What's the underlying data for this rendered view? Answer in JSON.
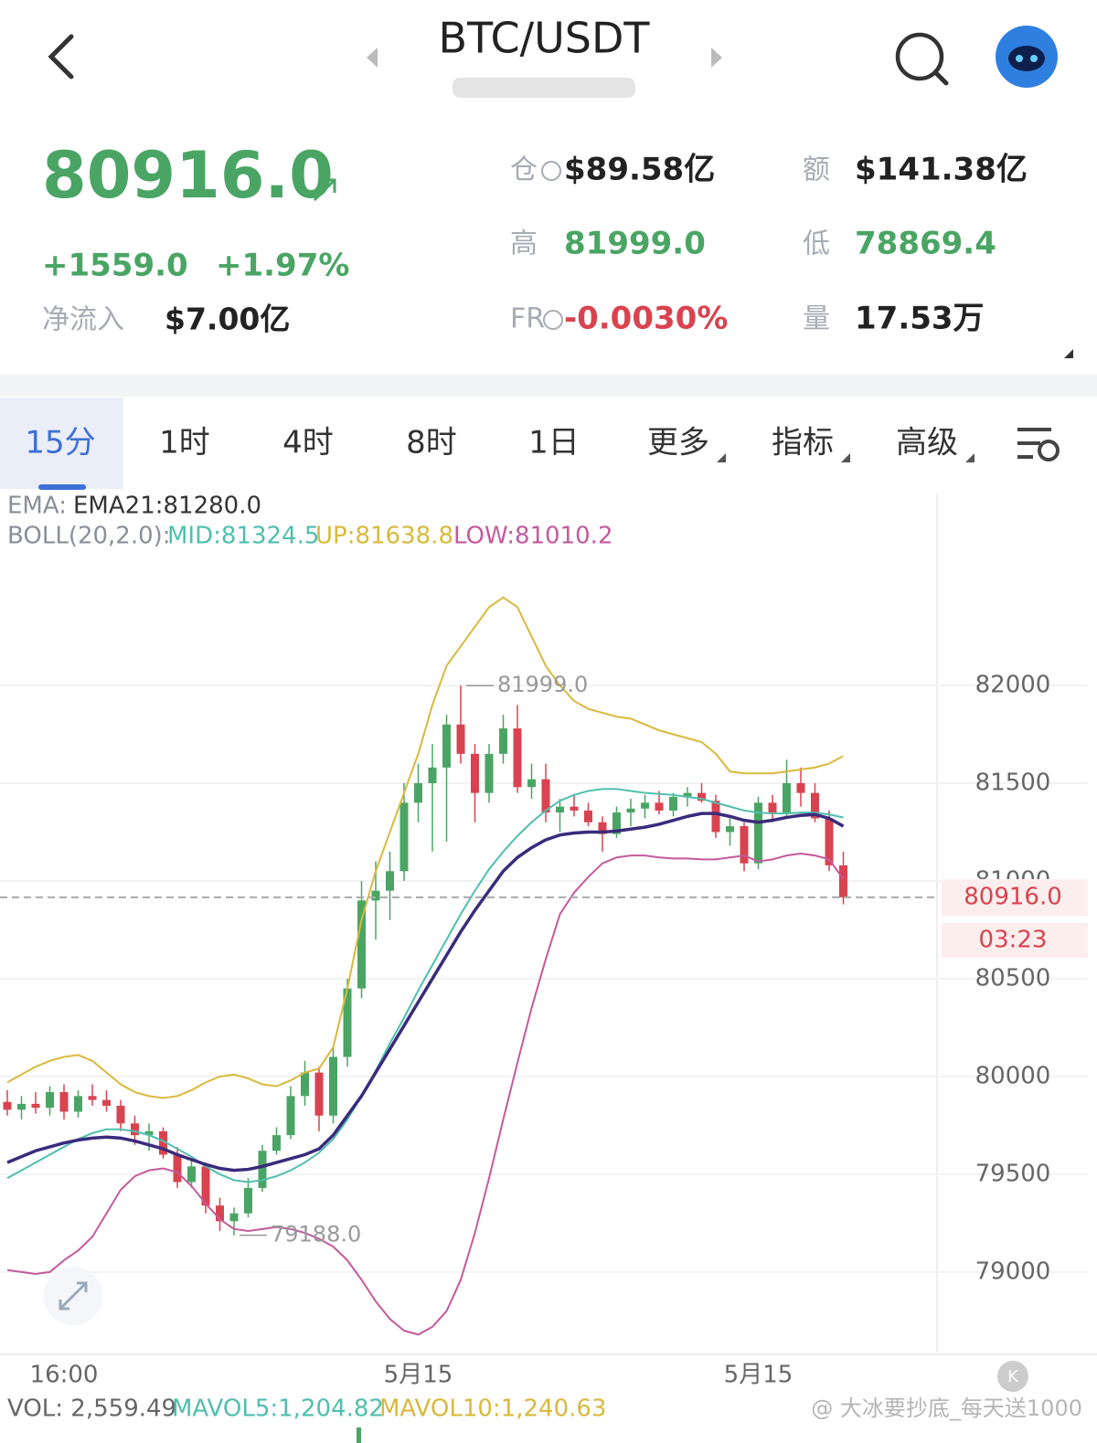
{
  "header": {
    "title": "BTC/USDT"
  },
  "ticker": {
    "price": "80916.0",
    "change": "+1559.0",
    "change_pct": "+1.97%",
    "inflow_label": "净流入",
    "inflow": "$7.00亿"
  },
  "stats": [
    {
      "label": "仓",
      "value": "$89.58亿",
      "color": "#222222"
    },
    {
      "label": "额",
      "value": "$141.38亿",
      "color": "#222222"
    },
    {
      "label": "高",
      "value": "81999.0",
      "color": "#4aa564"
    },
    {
      "label": "低",
      "value": "78869.4",
      "color": "#4aa564"
    },
    {
      "label": "FR",
      "value": "-0.0030%",
      "color": "#d9434f"
    },
    {
      "label": "量",
      "value": "17.53万",
      "color": "#222222"
    }
  ],
  "tabs": [
    "15分",
    "1时",
    "4时",
    "8时",
    "1日",
    "更多",
    "指标",
    "高级"
  ],
  "indicator_rows": [
    [
      {
        "text": "EMA:",
        "color": "#8a8f99"
      },
      {
        "text": "EMA21:81280.0",
        "color": "#333333"
      }
    ],
    [
      {
        "text": "BOLL(20,2.0):",
        "color": "#8a8f99"
      },
      {
        "text": "MID:81324.5",
        "color": "#4fbfae"
      },
      {
        "text": "UP:81638.8",
        "color": "#d9b93c"
      },
      {
        "text": "LOW:81010.2",
        "color": "#c45a9c"
      }
    ]
  ],
  "chart_data": {
    "type": "candlestick",
    "categories": [
      null,
      null,
      null,
      null,
      "16:00",
      null,
      null,
      null,
      null,
      null,
      null,
      null,
      null,
      null,
      null,
      null,
      null,
      null,
      null,
      null,
      null,
      null,
      null,
      null,
      null,
      null,
      null,
      null,
      null,
      "5月15",
      null,
      null,
      null,
      null,
      null,
      null,
      null,
      null,
      null,
      null,
      null,
      null,
      null,
      null,
      null,
      null,
      null,
      null,
      null,
      null,
      null,
      null,
      null,
      "5月15",
      null,
      null,
      null,
      null,
      null,
      null
    ],
    "open": [
      79870,
      79830,
      79860,
      79840,
      79920,
      79820,
      79900,
      79880,
      79850,
      79760,
      79700,
      79720,
      79600,
      79460,
      79540,
      79340,
      79260,
      79300,
      79430,
      79620,
      79700,
      79900,
      80020,
      79800,
      80100,
      80450,
      80900,
      80950,
      81050,
      81400,
      81500,
      81580,
      81800,
      81650,
      81450,
      81650,
      81780,
      81480,
      81520,
      81350,
      81380,
      81360,
      81300,
      81240,
      81350,
      81370,
      81400,
      81360,
      81430,
      81450,
      81410,
      81250,
      81280,
      81090,
      81400,
      81350,
      81500,
      81450,
      81320,
      81080
    ],
    "high": [
      79930,
      79900,
      79920,
      79950,
      79960,
      79930,
      79960,
      79930,
      79880,
      79800,
      79760,
      79740,
      79640,
      79580,
      79560,
      79380,
      79330,
      79480,
      79650,
      79740,
      79950,
      80080,
      80050,
      80150,
      80500,
      81000,
      81100,
      81150,
      81500,
      81600,
      81700,
      81850,
      81999,
      81700,
      81700,
      81850,
      81900,
      81600,
      81600,
      81420,
      81440,
      81400,
      81330,
      81380,
      81420,
      81440,
      81460,
      81450,
      81480,
      81500,
      81440,
      81320,
      81300,
      81430,
      81440,
      81620,
      81580,
      81500,
      81360,
      81150
    ],
    "low": [
      79800,
      79780,
      79810,
      79800,
      79780,
      79790,
      79850,
      79820,
      79720,
      79650,
      79620,
      79580,
      79430,
      79430,
      79300,
      79210,
      79188,
      79280,
      79410,
      79600,
      79680,
      79850,
      79720,
      79760,
      80050,
      80400,
      80700,
      80800,
      81000,
      81300,
      81150,
      81200,
      81600,
      81300,
      81400,
      81600,
      81450,
      81420,
      81300,
      81250,
      81330,
      81280,
      81150,
      81220,
      81280,
      81320,
      81340,
      81330,
      81380,
      81400,
      81220,
      81180,
      81050,
      81060,
      81300,
      81320,
      81380,
      81300,
      81050,
      80880
    ],
    "close": [
      79830,
      79860,
      79840,
      79920,
      79820,
      79900,
      79880,
      79850,
      79760,
      79700,
      79720,
      79600,
      79460,
      79540,
      79340,
      79260,
      79300,
      79430,
      79620,
      79700,
      79900,
      80020,
      79800,
      80100,
      80450,
      80900,
      80950,
      81050,
      81400,
      81500,
      81580,
      81800,
      81650,
      81450,
      81650,
      81780,
      81480,
      81520,
      81350,
      81380,
      81360,
      81300,
      81240,
      81350,
      81370,
      81400,
      81360,
      81430,
      81450,
      81410,
      81250,
      81280,
      81090,
      81400,
      81350,
      81500,
      81450,
      81320,
      81080,
      80916
    ],
    "up_color": "#4aa564",
    "down_color": "#d9434f",
    "lines": [
      {
        "color": "#d9b93c",
        "values": [
          79970,
          80010,
          80050,
          80080,
          80100,
          80110,
          80080,
          80020,
          79960,
          79920,
          79900,
          79890,
          79900,
          79930,
          79970,
          80000,
          80010,
          79990,
          79960,
          79950,
          79980,
          80020,
          80040,
          80150,
          80450,
          80800,
          81050,
          81250,
          81450,
          81650,
          81900,
          82100,
          82200,
          82300,
          82400,
          82450,
          82400,
          82250,
          82100,
          82000,
          81920,
          81880,
          81860,
          81840,
          81830,
          81800,
          81770,
          81750,
          81730,
          81710,
          81650,
          81560,
          81550,
          81550,
          81550,
          81560,
          81570,
          81580,
          81600,
          81638.8
        ]
      },
      {
        "color": "#c45a9c",
        "values": [
          79010,
          79000,
          78990,
          79000,
          79060,
          79110,
          79180,
          79300,
          79420,
          79490,
          79520,
          79530,
          79510,
          79440,
          79350,
          79270,
          79220,
          79210,
          79220,
          79230,
          79220,
          79200,
          79170,
          79130,
          79060,
          78960,
          78850,
          78760,
          78700,
          78680,
          78720,
          78800,
          78960,
          79200,
          79480,
          79780,
          80070,
          80350,
          80600,
          80830,
          80940,
          81020,
          81090,
          81120,
          81130,
          81130,
          81120,
          81115,
          81115,
          81110,
          81110,
          81120,
          81130,
          81100,
          81110,
          81130,
          81140,
          81130,
          81110,
          81010.2
        ]
      },
      {
        "color": "#4fbfae",
        "values": [
          79480,
          79520,
          79560,
          79600,
          79640,
          79680,
          79710,
          79730,
          79730,
          79720,
          79700,
          79670,
          79630,
          79590,
          79540,
          79500,
          79470,
          79460,
          79470,
          79490,
          79520,
          79560,
          79610,
          79680,
          79780,
          79900,
          80030,
          80170,
          80300,
          80440,
          80570,
          80700,
          80830,
          80950,
          81060,
          81150,
          81230,
          81300,
          81360,
          81410,
          81440,
          81460,
          81470,
          81470,
          81460,
          81450,
          81445,
          81440,
          81430,
          81420,
          81400,
          81380,
          81360,
          81350,
          81345,
          81345,
          81350,
          81350,
          81340,
          81324.5
        ]
      },
      {
        "color": "#3a2b7c",
        "values": [
          79560,
          79590,
          79620,
          79640,
          79660,
          79675,
          79685,
          79690,
          79685,
          79670,
          79650,
          79630,
          79600,
          79575,
          79550,
          79530,
          79520,
          79525,
          79540,
          79560,
          79580,
          79600,
          79630,
          79700,
          79800,
          79900,
          80020,
          80140,
          80260,
          80380,
          80500,
          80620,
          80740,
          80850,
          80950,
          81050,
          81120,
          81170,
          81210,
          81235,
          81245,
          81250,
          81250,
          81255,
          81265,
          81275,
          81290,
          81310,
          81330,
          81345,
          81345,
          81330,
          81310,
          81300,
          81310,
          81325,
          81335,
          81340,
          81320,
          81280
        ]
      }
    ],
    "ylim": [
      78600,
      82500
    ],
    "yticks": [
      79000,
      79500,
      80000,
      80500,
      81000,
      81500,
      82000
    ],
    "grid": true,
    "annotations": [
      {
        "value": 81999,
        "label": "81999.0"
      },
      {
        "value": 79188,
        "label": "79188.0"
      }
    ],
    "last_price": {
      "value": 80916,
      "label": "80916.0"
    },
    "countdown": "03:23"
  },
  "footer": {
    "volume": [
      {
        "text": "VOL: 2,559.49",
        "color": "#666666"
      },
      {
        "text": "MAVOL5:1,204.82",
        "color": "#4fbfae"
      },
      {
        "text": "MAVOL10:1,240.63",
        "color": "#d9b93c"
      }
    ],
    "watermark": "@ 大冰要抄底_每天送1000"
  }
}
